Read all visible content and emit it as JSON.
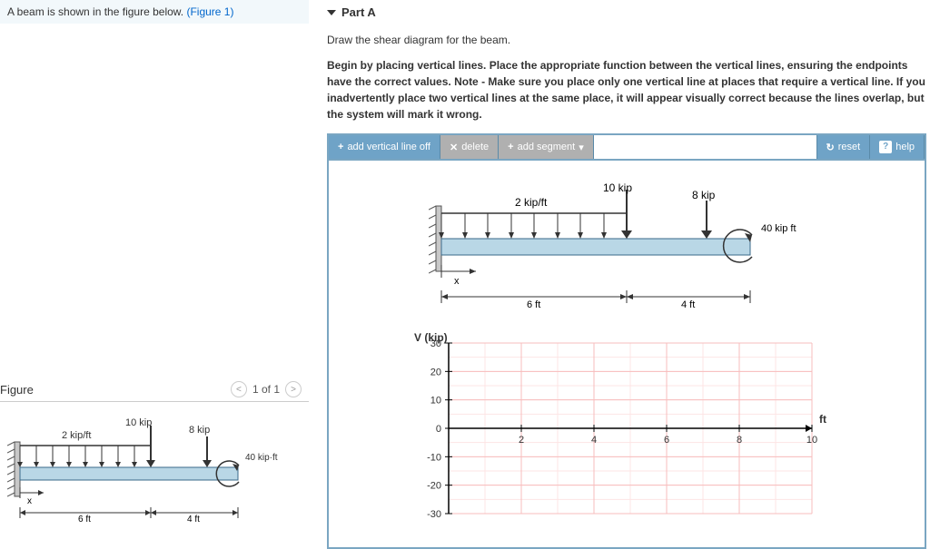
{
  "prompt": {
    "text_before": "A beam is shown in the figure below. ",
    "link_text": "(Figure 1)"
  },
  "figure_panel": {
    "title": "Figure",
    "pager": {
      "prev": "<",
      "label": "1 of 1",
      "next": ">"
    }
  },
  "part": {
    "caret": "▼",
    "label": "Part A"
  },
  "instructions": {
    "line1": "Draw the shear diagram for the beam.",
    "line2": "Begin by placing vertical lines. Place the appropriate function between the vertical lines, ensuring the endpoints have the correct values. Note - Make sure you place only one vertical line at places that require a vertical line. If you inadvertently place two vertical lines at the same place, it will appear visually correct because the lines overlap, but the system will mark it wrong."
  },
  "toolbar": {
    "add_vline": "add vertical line off",
    "delete": "delete",
    "add_segment": "add segment",
    "reset": "reset",
    "help": "help"
  },
  "beam_labels": {
    "dist_load": "2 kip/ft",
    "point_load": "10 kip",
    "end_load": "8 kip",
    "moment": "40 kip·ft",
    "xdim": "x",
    "span1": "6 ft",
    "span2": "4 ft"
  },
  "chart": {
    "ylabel": "V (kip)",
    "xlabel": "ft",
    "ymin": -30,
    "ymax": 30,
    "ytick_step": 10,
    "xmin": 0,
    "xmax": 10,
    "xtick_step": 2,
    "grid_major": "#f7bdbd",
    "grid_minor": "#fde4e4",
    "axis_color": "#000000",
    "background": "#ffffff"
  }
}
